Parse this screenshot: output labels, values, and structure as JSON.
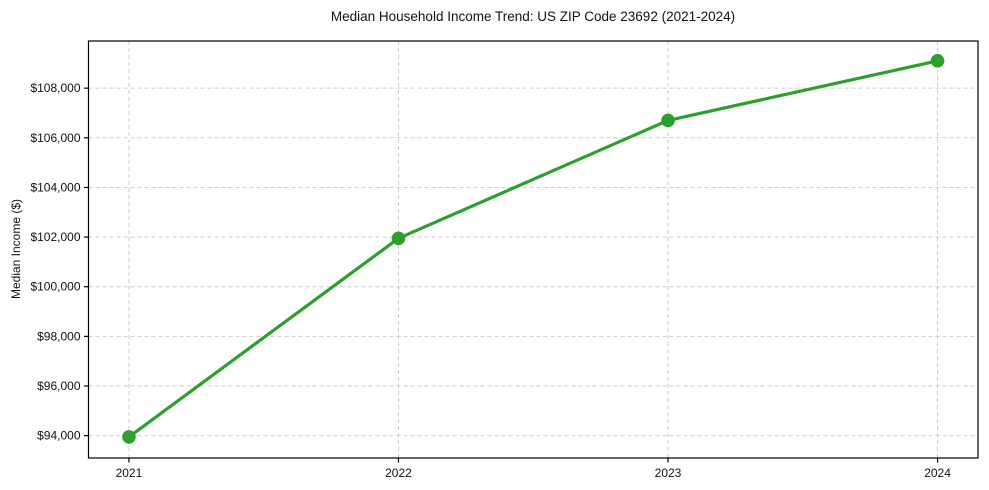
{
  "chart_data": {
    "type": "line",
    "title": "Median Household Income Trend: US ZIP Code 23692 (2021-2024)",
    "xlabel": "",
    "ylabel": "Median Income ($)",
    "x": [
      2021,
      2022,
      2023,
      2024
    ],
    "x_tick_labels": [
      "2021",
      "2022",
      "2023",
      "2024"
    ],
    "values": [
      93950,
      101950,
      106700,
      109100
    ],
    "y_ticks": [
      94000,
      96000,
      98000,
      100000,
      102000,
      104000,
      106000,
      108000
    ],
    "y_tick_labels": [
      "$94,000",
      "$96,000",
      "$98,000",
      "$100,000",
      "$102,000",
      "$104,000",
      "$106,000",
      "$108,000"
    ],
    "xlim": [
      2020.85,
      2024.15
    ],
    "ylim": [
      93100,
      109900
    ],
    "grid": true,
    "grid_style": "dashed",
    "legend": false,
    "line_color": "#2ca02c",
    "marker": "circle",
    "grid_color": "#cdcdcd",
    "spine_color": "#000000",
    "background_color": "#ffffff"
  }
}
